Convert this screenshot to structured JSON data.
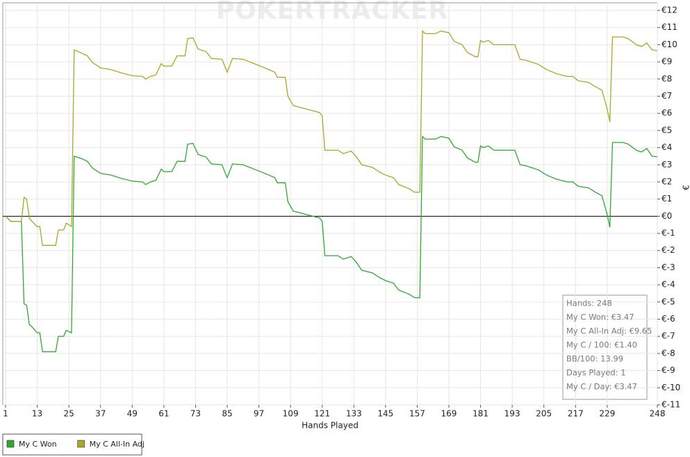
{
  "chart_data": {
    "type": "line",
    "watermark": "POKERTRACKER",
    "x_label": "Hands Played",
    "y_label": "€",
    "xlim": [
      1,
      248
    ],
    "xticks": [
      1,
      13,
      25,
      37,
      49,
      61,
      73,
      85,
      97,
      109,
      121,
      133,
      145,
      157,
      169,
      181,
      193,
      205,
      217,
      229,
      248
    ],
    "ylim": [
      -11,
      12
    ],
    "yticks": [
      {
        "value": -11,
        "label": "€-11"
      },
      {
        "value": -10,
        "label": "€-10"
      },
      {
        "value": -9,
        "label": "€-9"
      },
      {
        "value": -8,
        "label": "€-8"
      },
      {
        "value": -7,
        "label": "€-7"
      },
      {
        "value": -6,
        "label": "€-6"
      },
      {
        "value": -5,
        "label": "€-5"
      },
      {
        "value": -4,
        "label": "€-4"
      },
      {
        "value": -3,
        "label": "€-3"
      },
      {
        "value": -2,
        "label": "€-2"
      },
      {
        "value": -1,
        "label": "€-1"
      },
      {
        "value": 0,
        "label": "€0"
      },
      {
        "value": 1,
        "label": "€1"
      },
      {
        "value": 2,
        "label": "€2"
      },
      {
        "value": 3,
        "label": "€3"
      },
      {
        "value": 4,
        "label": "€4"
      },
      {
        "value": 5,
        "label": "€5"
      },
      {
        "value": 6,
        "label": "€6"
      },
      {
        "value": 7,
        "label": "€7"
      },
      {
        "value": 8,
        "label": "€8"
      },
      {
        "value": 9,
        "label": "€9"
      },
      {
        "value": 10,
        "label": "€10"
      },
      {
        "value": 11,
        "label": "€11"
      },
      {
        "value": 12,
        "label": "€12"
      }
    ],
    "grid": true,
    "legend": "bottom-left",
    "x": [
      1,
      3,
      7,
      8,
      9,
      10,
      11,
      13,
      14,
      15,
      20,
      21,
      23,
      24,
      26,
      27,
      30,
      32,
      34,
      37,
      41,
      45,
      49,
      53,
      54,
      56,
      58,
      60,
      61,
      64,
      66,
      69,
      70,
      72,
      74,
      77,
      79,
      83,
      85,
      87,
      91,
      96,
      100,
      103,
      104,
      107,
      108,
      110,
      115,
      120,
      121,
      122,
      127,
      129,
      132,
      134,
      136,
      140,
      143,
      145,
      148,
      150,
      154,
      156,
      158,
      159,
      160,
      164,
      166,
      169,
      171,
      174,
      176,
      179,
      180,
      181,
      182,
      184,
      186,
      194,
      196,
      198,
      203,
      206,
      210,
      214,
      216,
      218,
      222,
      224,
      227,
      229,
      230,
      231,
      235,
      237,
      240,
      242,
      244,
      246,
      248
    ],
    "series": [
      {
        "name": "My C Won",
        "color": "#2ea82e",
        "values": [
          0,
          -0.3,
          -0.3,
          -5.1,
          -5.2,
          -6.3,
          -6.45,
          -6.8,
          -6.8,
          -7.9,
          -7.9,
          -7.0,
          -7.0,
          -6.65,
          -6.8,
          3.5,
          3.35,
          3.2,
          2.8,
          2.5,
          2.4,
          2.2,
          2.05,
          2.0,
          1.85,
          2.0,
          2.1,
          2.75,
          2.6,
          2.6,
          3.2,
          3.2,
          4.2,
          4.25,
          3.6,
          3.45,
          3.05,
          3.0,
          2.25,
          3.05,
          3.0,
          2.7,
          2.45,
          2.25,
          1.95,
          1.95,
          0.85,
          0.3,
          0.1,
          -0.1,
          -0.3,
          -2.3,
          -2.3,
          -2.5,
          -2.35,
          -2.7,
          -3.15,
          -3.3,
          -3.6,
          -3.75,
          -3.9,
          -4.3,
          -4.55,
          -4.75,
          -4.75,
          4.65,
          4.5,
          4.5,
          4.65,
          4.55,
          4.05,
          3.85,
          3.4,
          3.15,
          3.15,
          4.1,
          4.0,
          4.1,
          3.85,
          3.85,
          3.0,
          2.95,
          2.7,
          2.4,
          2.15,
          2.0,
          2.0,
          1.75,
          1.65,
          1.45,
          1.2,
          0.1,
          -0.65,
          4.3,
          4.3,
          4.2,
          3.85,
          3.75,
          3.95,
          3.5,
          3.47
        ]
      },
      {
        "name": "My C All-In Adj",
        "color": "#a8a824",
        "values": [
          0,
          -0.3,
          -0.3,
          1.1,
          1.0,
          -0.1,
          -0.3,
          -0.6,
          -0.6,
          -1.7,
          -1.7,
          -0.8,
          -0.8,
          -0.4,
          -0.6,
          9.7,
          9.5,
          9.35,
          8.95,
          8.65,
          8.55,
          8.35,
          8.2,
          8.15,
          8.0,
          8.15,
          8.25,
          8.9,
          8.75,
          8.75,
          9.35,
          9.35,
          10.35,
          10.4,
          9.75,
          9.6,
          9.2,
          9.15,
          8.4,
          9.2,
          9.15,
          8.85,
          8.6,
          8.4,
          8.1,
          8.1,
          7.0,
          6.45,
          6.25,
          6.05,
          5.85,
          3.85,
          3.85,
          3.65,
          3.8,
          3.45,
          3.0,
          2.85,
          2.55,
          2.4,
          2.25,
          1.85,
          1.6,
          1.4,
          1.4,
          10.8,
          10.65,
          10.65,
          10.8,
          10.7,
          10.2,
          10.0,
          9.55,
          9.3,
          9.3,
          10.25,
          10.15,
          10.25,
          10.0,
          10.0,
          9.15,
          9.1,
          8.85,
          8.55,
          8.3,
          8.15,
          8.15,
          7.9,
          7.8,
          7.6,
          7.35,
          6.25,
          5.5,
          10.45,
          10.45,
          10.35,
          10.0,
          9.9,
          10.1,
          9.7,
          9.65
        ]
      }
    ],
    "stats_box": [
      "Hands: 248",
      "My C Won: €3.47",
      "My C All-In Adj: €9.65",
      "My C / 100: €1.40",
      "BB/100: 13.99",
      "Days Played: 1",
      "My C / Day: €3.47"
    ]
  }
}
